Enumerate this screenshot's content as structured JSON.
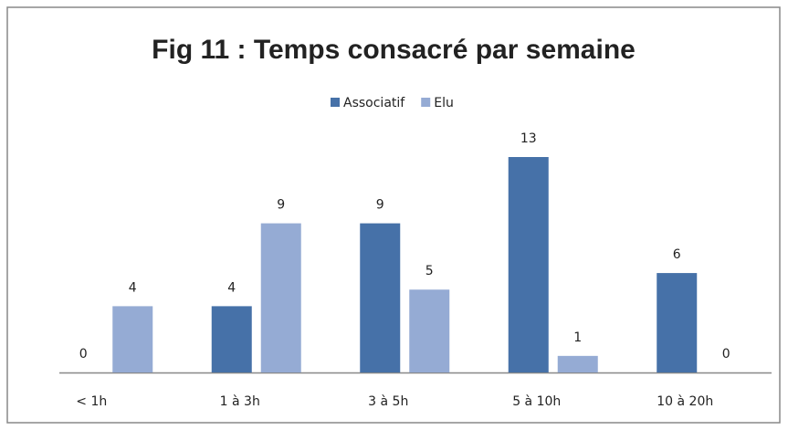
{
  "chart_data": {
    "type": "bar",
    "title": "Fig 11 : Temps consacré par semaine",
    "categories": [
      "< 1h",
      "1 à 3h",
      "3 à 5h",
      "5 à 10h",
      "10 à 20h"
    ],
    "series": [
      {
        "name": "Associatif",
        "color": "#4671a8",
        "values": [
          0,
          4,
          9,
          13,
          6
        ]
      },
      {
        "name": "Elu",
        "color": "#95abd4",
        "values": [
          4,
          9,
          5,
          1,
          0
        ]
      }
    ],
    "legend": "top"
  }
}
